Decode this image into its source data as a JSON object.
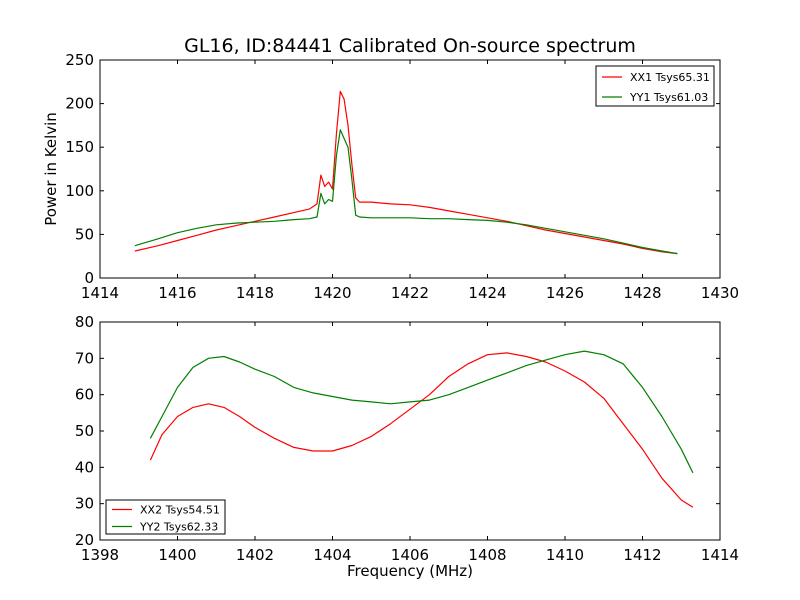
{
  "chart_data": [
    {
      "type": "line",
      "title": "GL16, ID:84441 Calibrated On-source spectrum",
      "xlabel": "",
      "ylabel": "Power in Kelvin",
      "xlim": [
        1414,
        1430
      ],
      "ylim": [
        0,
        250
      ],
      "xticks": [
        1414,
        1416,
        1418,
        1420,
        1422,
        1424,
        1426,
        1428,
        1430
      ],
      "yticks": [
        0,
        50,
        100,
        150,
        200,
        250
      ],
      "grid": false,
      "legend_position": "top-right",
      "series": [
        {
          "name": "XX1 Tsys65.31",
          "color": "#ff0000",
          "x": [
            1414.9,
            1415.5,
            1416.0,
            1416.5,
            1417.0,
            1417.5,
            1418.0,
            1418.5,
            1419.0,
            1419.4,
            1419.6,
            1419.7,
            1419.8,
            1419.9,
            1420.0,
            1420.1,
            1420.2,
            1420.3,
            1420.4,
            1420.5,
            1420.6,
            1420.7,
            1421.0,
            1421.5,
            1422.0,
            1422.5,
            1423.0,
            1423.5,
            1424.0,
            1424.5,
            1425.0,
            1425.5,
            1426.0,
            1426.5,
            1427.0,
            1427.5,
            1428.0,
            1428.5,
            1428.9
          ],
          "y": [
            31,
            37,
            43,
            49,
            55,
            60,
            65,
            70,
            75,
            79,
            85,
            118,
            105,
            110,
            102,
            165,
            214,
            205,
            175,
            130,
            92,
            87,
            87,
            85,
            84,
            81,
            77,
            73,
            69,
            65,
            60,
            55,
            51,
            47,
            43,
            39,
            34,
            30,
            28
          ]
        },
        {
          "name": "YY1 Tsys61.03",
          "color": "#008000",
          "x": [
            1414.9,
            1415.5,
            1416.0,
            1416.5,
            1417.0,
            1417.5,
            1418.0,
            1418.5,
            1419.0,
            1419.4,
            1419.6,
            1419.7,
            1419.8,
            1419.9,
            1420.0,
            1420.1,
            1420.2,
            1420.3,
            1420.4,
            1420.5,
            1420.6,
            1420.7,
            1421.0,
            1421.5,
            1422.0,
            1422.5,
            1423.0,
            1423.5,
            1424.0,
            1424.5,
            1425.0,
            1425.5,
            1426.0,
            1426.5,
            1427.0,
            1427.5,
            1428.0,
            1428.5,
            1428.9
          ],
          "y": [
            37,
            45,
            52,
            57,
            61,
            63,
            64,
            65,
            67,
            68,
            70,
            97,
            85,
            90,
            88,
            140,
            170,
            160,
            150,
            113,
            72,
            70,
            69,
            69,
            69,
            68,
            68,
            67,
            66,
            64,
            61,
            57,
            53,
            49,
            45,
            40,
            35,
            31,
            28
          ]
        }
      ]
    },
    {
      "type": "line",
      "title": "",
      "xlabel": "Frequency (MHz)",
      "ylabel": "",
      "xlim": [
        1398,
        1414
      ],
      "ylim": [
        20,
        80
      ],
      "xticks": [
        1398,
        1400,
        1402,
        1404,
        1406,
        1408,
        1410,
        1412,
        1414
      ],
      "yticks": [
        20,
        30,
        40,
        50,
        60,
        70,
        80
      ],
      "grid": false,
      "legend_position": "bottom-left",
      "series": [
        {
          "name": "XX2 Tsys54.51",
          "color": "#ff0000",
          "x": [
            1399.3,
            1399.6,
            1400.0,
            1400.4,
            1400.8,
            1401.2,
            1401.6,
            1402.0,
            1402.5,
            1403.0,
            1403.5,
            1404.0,
            1404.5,
            1405.0,
            1405.5,
            1406.0,
            1406.5,
            1407.0,
            1407.5,
            1408.0,
            1408.5,
            1409.0,
            1409.5,
            1410.0,
            1410.5,
            1411.0,
            1411.5,
            1412.0,
            1412.5,
            1413.0,
            1413.3
          ],
          "y": [
            42,
            49,
            54,
            56.5,
            57.5,
            56.5,
            54,
            51,
            48,
            45.5,
            44.5,
            44.5,
            46,
            48.5,
            52,
            56,
            60,
            65,
            68.5,
            71,
            71.5,
            70.5,
            69,
            66.5,
            63.5,
            59,
            52,
            45,
            37,
            31,
            29
          ]
        },
        {
          "name": "YY2 Tsys62.33",
          "color": "#008000",
          "x": [
            1399.3,
            1399.6,
            1400.0,
            1400.4,
            1400.8,
            1401.2,
            1401.6,
            1402.0,
            1402.5,
            1403.0,
            1403.5,
            1404.0,
            1404.5,
            1405.0,
            1405.5,
            1406.0,
            1406.5,
            1407.0,
            1407.5,
            1408.0,
            1408.5,
            1409.0,
            1409.5,
            1410.0,
            1410.5,
            1411.0,
            1411.5,
            1412.0,
            1412.5,
            1413.0,
            1413.3
          ],
          "y": [
            48,
            54,
            62,
            67.5,
            70,
            70.5,
            69,
            67,
            65,
            62,
            60.5,
            59.5,
            58.5,
            58,
            57.5,
            58,
            58.5,
            60,
            62,
            64,
            66,
            68,
            69.5,
            71,
            72,
            71,
            68.5,
            62,
            54,
            45,
            38.5
          ]
        }
      ]
    }
  ]
}
